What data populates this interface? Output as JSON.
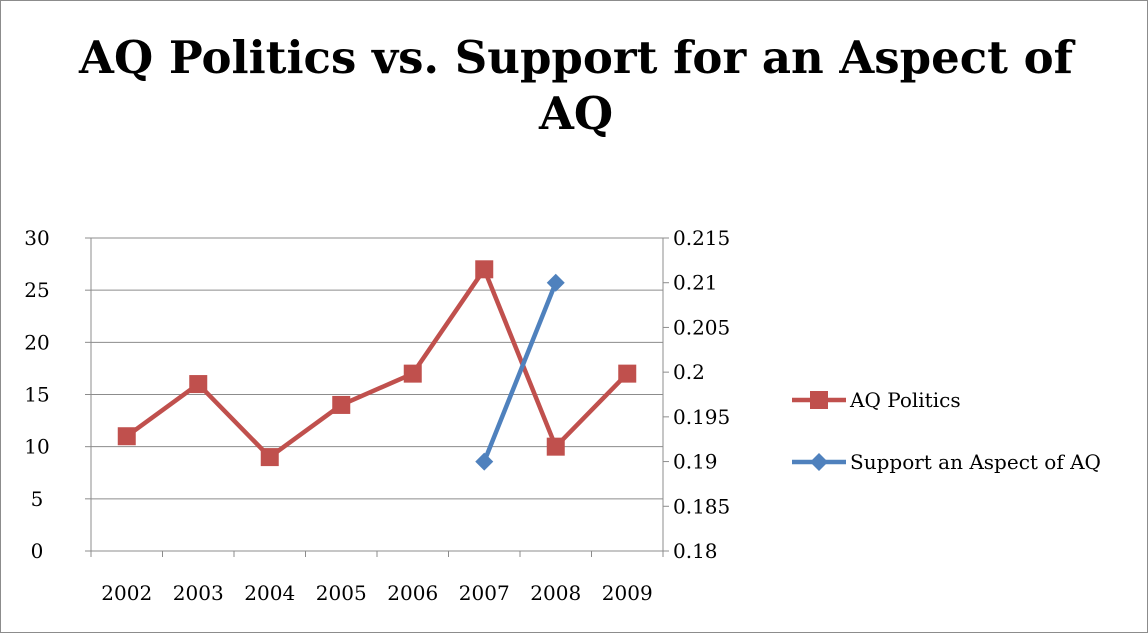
{
  "chart_data": {
    "type": "line",
    "title_lines": [
      "AQ Politics vs. Support for an Aspect of",
      "AQ"
    ],
    "categories": [
      "2002",
      "2003",
      "2004",
      "2005",
      "2006",
      "2007",
      "2008",
      "2009"
    ],
    "y_left": {
      "min": 0,
      "max": 30,
      "step": 5,
      "ticks": [
        "0",
        "5",
        "10",
        "15",
        "20",
        "25",
        "30"
      ]
    },
    "y_right": {
      "min": 0.18,
      "max": 0.215,
      "step": 0.005,
      "ticks": [
        "0.18",
        "0.185",
        "0.19",
        "0.195",
        "0.2",
        "0.205",
        "0.21",
        "0.215"
      ]
    },
    "series": [
      {
        "name": "AQ Politics",
        "axis": "left",
        "marker": "square",
        "color": "#c0504d",
        "values": [
          11,
          16,
          9,
          14,
          17,
          27,
          10,
          17
        ]
      },
      {
        "name": "Support an Aspect of AQ",
        "axis": "right",
        "marker": "diamond",
        "color": "#4f81bd",
        "values": [
          null,
          null,
          null,
          null,
          null,
          0.19,
          0.21,
          null
        ]
      }
    ],
    "grid": true,
    "legend_position": "right"
  }
}
